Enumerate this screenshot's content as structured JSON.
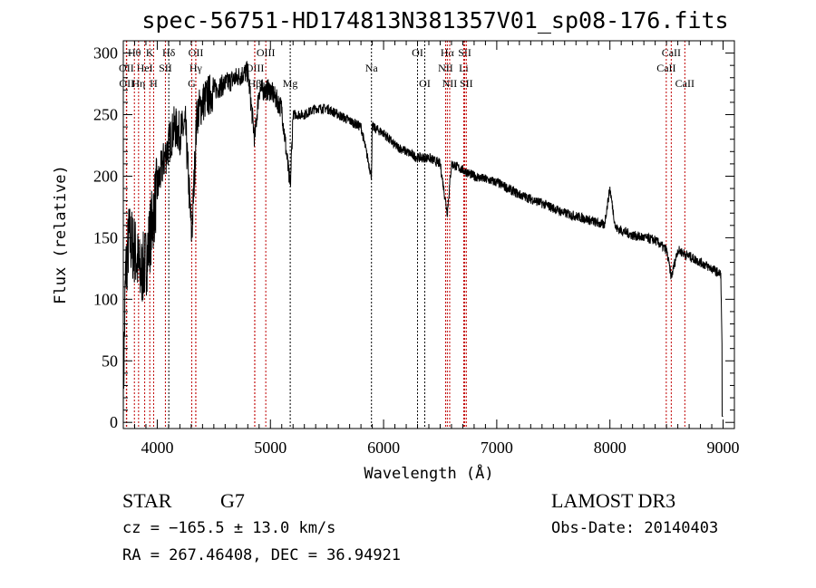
{
  "chart_data": {
    "type": "line",
    "title": "spec-56751-HD174813N381357V01_sp08-176.fits",
    "xlabel": "Wavelength (Å)",
    "ylabel": "Flux (relative)",
    "xlim": [
      3700,
      9100
    ],
    "ylim": [
      -5,
      310
    ],
    "xticks": [
      4000,
      5000,
      6000,
      7000,
      8000,
      9000
    ],
    "yticks": [
      0,
      50,
      100,
      150,
      200,
      250,
      300
    ],
    "series": [
      {
        "name": "spectrum",
        "x": [
          3700,
          3720,
          3750,
          3800,
          3850,
          3900,
          3950,
          4000,
          4050,
          4100,
          4150,
          4200,
          4250,
          4305,
          4350,
          4400,
          4500,
          4600,
          4700,
          4800,
          4861,
          4900,
          5000,
          5100,
          5175,
          5200,
          5300,
          5400,
          5500,
          5600,
          5700,
          5800,
          5893,
          5900,
          6000,
          6100,
          6200,
          6300,
          6400,
          6500,
          6563,
          6600,
          6700,
          6800,
          7000,
          7200,
          7400,
          7600,
          7800,
          7950,
          8000,
          8050,
          8200,
          8400,
          8500,
          8542,
          8600,
          8700,
          8800,
          8900,
          8980,
          9000
        ],
        "y": [
          20,
          120,
          150,
          140,
          120,
          130,
          160,
          190,
          210,
          225,
          240,
          235,
          240,
          150,
          250,
          260,
          270,
          275,
          280,
          285,
          230,
          270,
          270,
          255,
          190,
          250,
          250,
          255,
          255,
          250,
          245,
          240,
          200,
          240,
          235,
          225,
          220,
          215,
          215,
          210,
          170,
          210,
          205,
          200,
          195,
          185,
          178,
          170,
          165,
          160,
          190,
          158,
          152,
          148,
          140,
          118,
          140,
          135,
          130,
          125,
          120,
          5
        ]
      }
    ],
    "lines": [
      {
        "label": "Hθ",
        "w": 3798,
        "row": 0,
        "color": "#c00000"
      },
      {
        "label": "K",
        "w": 3934,
        "row": 0,
        "color": "#c00000"
      },
      {
        "label": "Hδ",
        "w": 4102,
        "row": 0,
        "color": "#000000"
      },
      {
        "label": "OII",
        "w": 4341,
        "row": 0,
        "color": "#c00000"
      },
      {
        "label": "OIII",
        "w": 4959,
        "row": 0,
        "color": "#c00000"
      },
      {
        "label": "OII",
        "w": 3727,
        "row": 1,
        "color": "#c00000"
      },
      {
        "label": "HeI",
        "w": 3889,
        "row": 1,
        "color": "#c00000"
      },
      {
        "label": "SII",
        "w": 4072,
        "row": 1,
        "color": "#c00000"
      },
      {
        "label": "Hγ",
        "w": 4340,
        "row": 1,
        "color": "#c00000"
      },
      {
        "label": "OIII",
        "w": 4862,
        "row": 1,
        "color": "#c00000"
      },
      {
        "label": "OII",
        "w": 3730,
        "row": 2,
        "color": "#c00000"
      },
      {
        "label": "Hη",
        "w": 3835,
        "row": 2,
        "color": "#c00000"
      },
      {
        "label": "H",
        "w": 3968,
        "row": 2,
        "color": "#c00000"
      },
      {
        "label": "G",
        "w": 4305,
        "row": 2,
        "color": "#c00000"
      },
      {
        "label": "Hβ",
        "w": 4861,
        "row": 2,
        "color": "#c00000"
      },
      {
        "label": "Mg",
        "w": 5175,
        "row": 2,
        "color": "#000000"
      },
      {
        "label": "Na",
        "w": 5893,
        "row": 1,
        "color": "#000000"
      },
      {
        "label": "OI",
        "w": 6300,
        "row": 0,
        "color": "#000000"
      },
      {
        "label": "OI",
        "w": 6364,
        "row": 2,
        "color": "#000000"
      },
      {
        "label": "Hα",
        "w": 6563,
        "row": 0,
        "color": "#c00000"
      },
      {
        "label": "SII",
        "w": 6717,
        "row": 0,
        "color": "#c00000"
      },
      {
        "label": "NII",
        "w": 6548,
        "row": 1,
        "color": "#c00000"
      },
      {
        "label": "Li",
        "w": 6708,
        "row": 1,
        "color": "#c00000"
      },
      {
        "label": "NII",
        "w": 6584,
        "row": 2,
        "color": "#c00000"
      },
      {
        "label": "SII",
        "w": 6731,
        "row": 2,
        "color": "#c00000"
      },
      {
        "label": "CaII",
        "w": 8542,
        "row": 0,
        "color": "#c00000"
      },
      {
        "label": "CaII",
        "w": 8498,
        "row": 1,
        "color": "#c00000"
      },
      {
        "label": "CaII",
        "w": 8662,
        "row": 2,
        "color": "#c00000"
      }
    ]
  },
  "info": {
    "class": "STAR",
    "subclass": "G7",
    "cz": "cz = −165.5 ± 13.0 km/s",
    "radec": "RA = 267.46408, DEC =  36.94921",
    "survey": "LAMOST DR3",
    "obsdate": "Obs-Date: 20140403"
  }
}
